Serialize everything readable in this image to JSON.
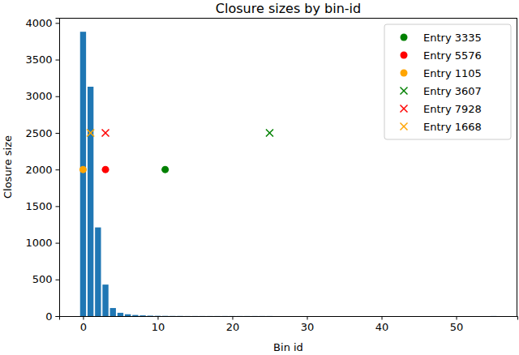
{
  "chart_data": {
    "type": "bar",
    "title": "Closure sizes by bin-id",
    "x_label": "Bin id",
    "y_label": "Closure size",
    "xlim": [
      -3.2,
      58.2
    ],
    "ylim": [
      0,
      4070
    ],
    "xticks": [
      0,
      10,
      20,
      30,
      40,
      50
    ],
    "yticks": [
      0,
      500,
      1000,
      1500,
      2000,
      2500,
      3000,
      3500,
      4000
    ],
    "legend": "upper right",
    "grid": false,
    "series": [
      {
        "type": "bar",
        "color": "#1f77b4",
        "x": [
          0,
          1,
          2,
          3,
          4,
          5,
          6,
          7,
          8,
          9,
          10,
          11,
          12,
          13,
          14,
          15,
          16,
          17,
          18,
          19,
          20,
          21,
          22,
          23,
          24,
          25,
          26,
          27,
          28,
          29,
          30,
          31,
          32,
          33,
          34,
          35,
          36,
          37,
          38,
          39,
          40,
          41,
          42,
          43,
          44,
          45,
          46,
          47,
          48,
          49,
          50,
          51,
          52,
          53,
          54,
          55
        ],
        "values": [
          3880,
          3130,
          1210,
          430,
          110,
          45,
          25,
          15,
          10,
          6,
          4,
          3,
          2,
          2,
          1,
          1,
          1,
          1,
          1,
          1,
          1,
          1,
          1,
          1,
          1,
          1,
          0,
          0,
          0,
          0,
          0,
          0,
          0,
          0,
          0,
          0,
          0,
          0,
          0,
          0,
          0,
          0,
          0,
          0,
          0,
          0,
          0,
          0,
          0,
          0,
          0,
          0,
          0,
          0,
          0,
          1
        ]
      },
      {
        "type": "scatter",
        "name": "Entry 3335",
        "color": "green",
        "marker": "circle",
        "x": [
          11
        ],
        "values": [
          2000
        ]
      },
      {
        "type": "scatter",
        "name": "Entry 5576",
        "color": "red",
        "marker": "circle",
        "x": [
          3
        ],
        "values": [
          2000
        ]
      },
      {
        "type": "scatter",
        "name": "Entry 1105",
        "color": "orange",
        "marker": "circle",
        "x": [
          0
        ],
        "values": [
          2000
        ]
      },
      {
        "type": "scatter",
        "name": "Entry 3607",
        "color": "green",
        "marker": "x",
        "x": [
          25
        ],
        "values": [
          2500
        ]
      },
      {
        "type": "scatter",
        "name": "Entry 7928",
        "color": "red",
        "marker": "x",
        "x": [
          3
        ],
        "values": [
          2500
        ]
      },
      {
        "type": "scatter",
        "name": "Entry 1668",
        "color": "orange",
        "marker": "x",
        "x": [
          1
        ],
        "values": [
          2500
        ]
      }
    ]
  }
}
